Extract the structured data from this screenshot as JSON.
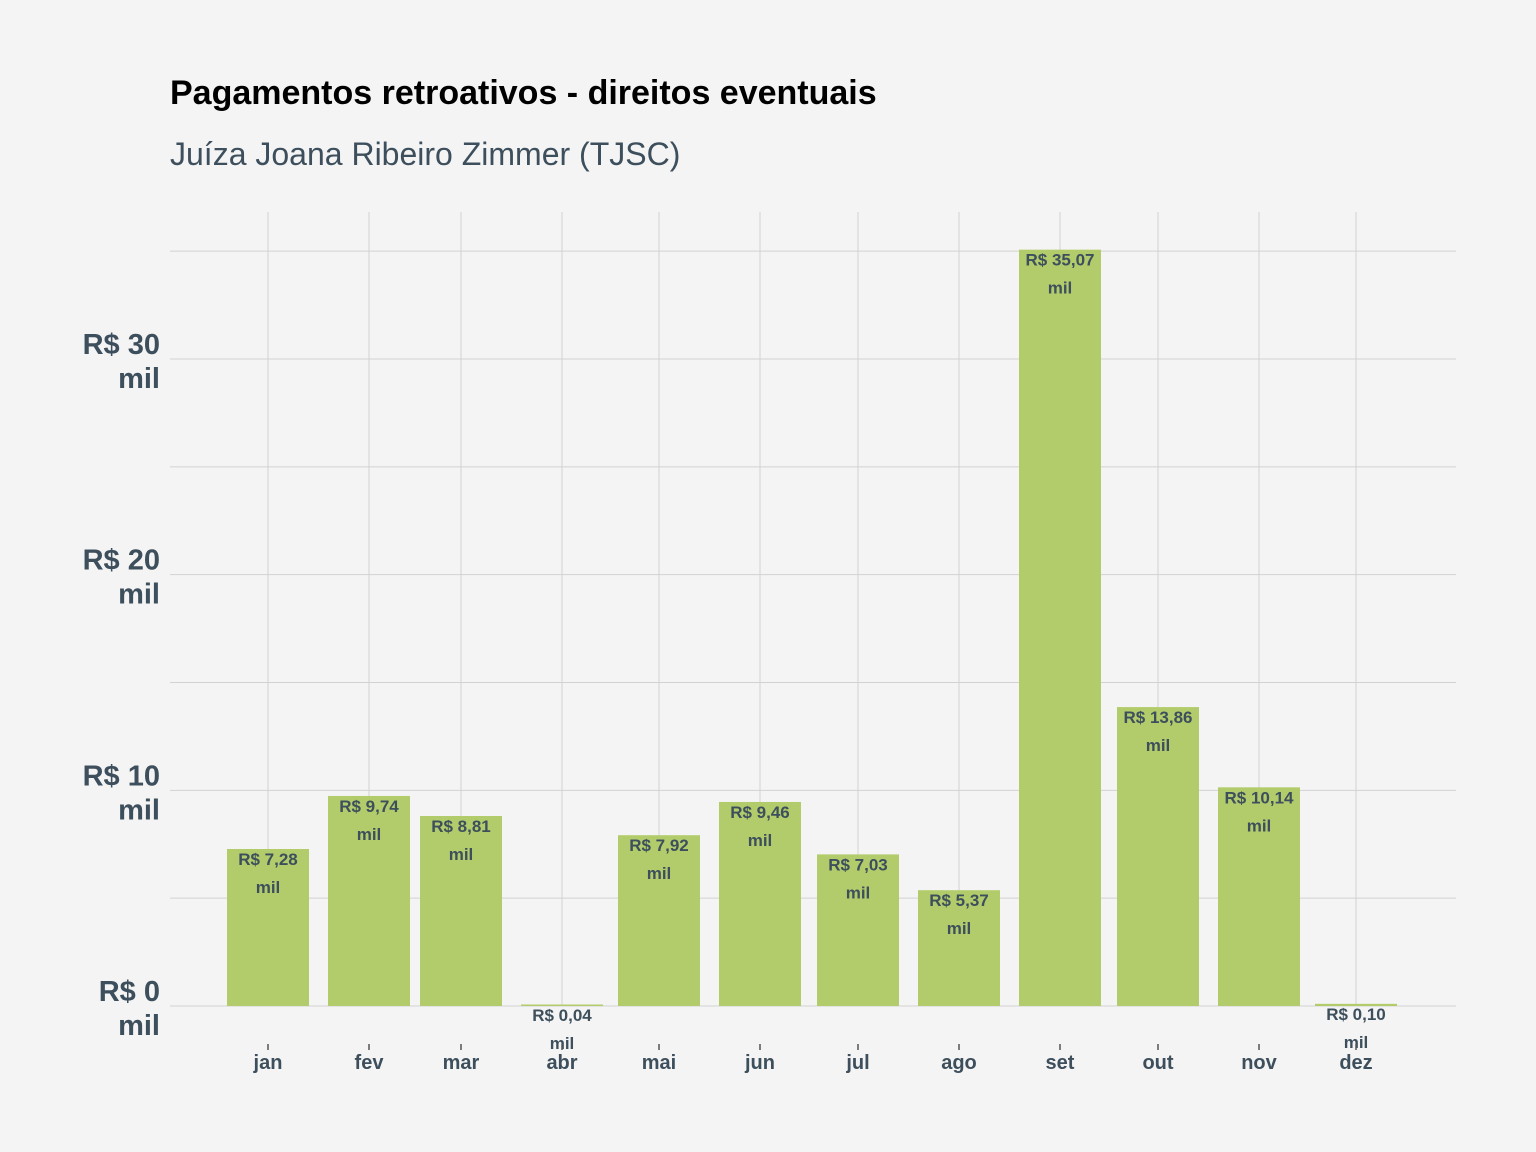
{
  "chart_data": {
    "type": "bar",
    "title": "Pagamentos retroativos - direitos eventuais",
    "subtitle": "Juíza Joana Ribeiro Zimmer (TJSC)",
    "xlabel": "",
    "ylabel": "",
    "categories": [
      "jan",
      "fev",
      "mar",
      "abr",
      "mai",
      "jun",
      "jul",
      "ago",
      "set",
      "out",
      "nov",
      "dez"
    ],
    "values": [
      7.28,
      9.74,
      8.81,
      0.04,
      7.92,
      9.46,
      7.03,
      5.37,
      35.07,
      13.86,
      10.14,
      0.1
    ],
    "data_labels": [
      [
        "R$ 7,28",
        "mil"
      ],
      [
        "R$ 9,74",
        "mil"
      ],
      [
        "R$ 8,81",
        "mil"
      ],
      [
        "R$ 0,04",
        "mil"
      ],
      [
        "R$ 7,92",
        "mil"
      ],
      [
        "R$ 9,46",
        "mil"
      ],
      [
        "R$ 7,03",
        "mil"
      ],
      [
        "R$ 5,37",
        "mil"
      ],
      [
        "R$ 35,07",
        "mil"
      ],
      [
        "R$ 13,86",
        "mil"
      ],
      [
        "R$ 10,14",
        "mil"
      ],
      [
        "R$ 0,10",
        "mil"
      ]
    ],
    "yticks": [
      {
        "value": 0,
        "label": [
          "R$ 0",
          "mil"
        ]
      },
      {
        "value": 10,
        "label": [
          "R$ 10",
          "mil"
        ]
      },
      {
        "value": 20,
        "label": [
          "R$ 20",
          "mil"
        ]
      },
      {
        "value": 30,
        "label": [
          "R$ 30",
          "mil"
        ]
      }
    ],
    "ylim": [
      0,
      35.07
    ],
    "grid": true,
    "bar_color": "#b3cc6b",
    "grid_color": "#d2d2d2",
    "text_color": "#3d4f5c"
  }
}
